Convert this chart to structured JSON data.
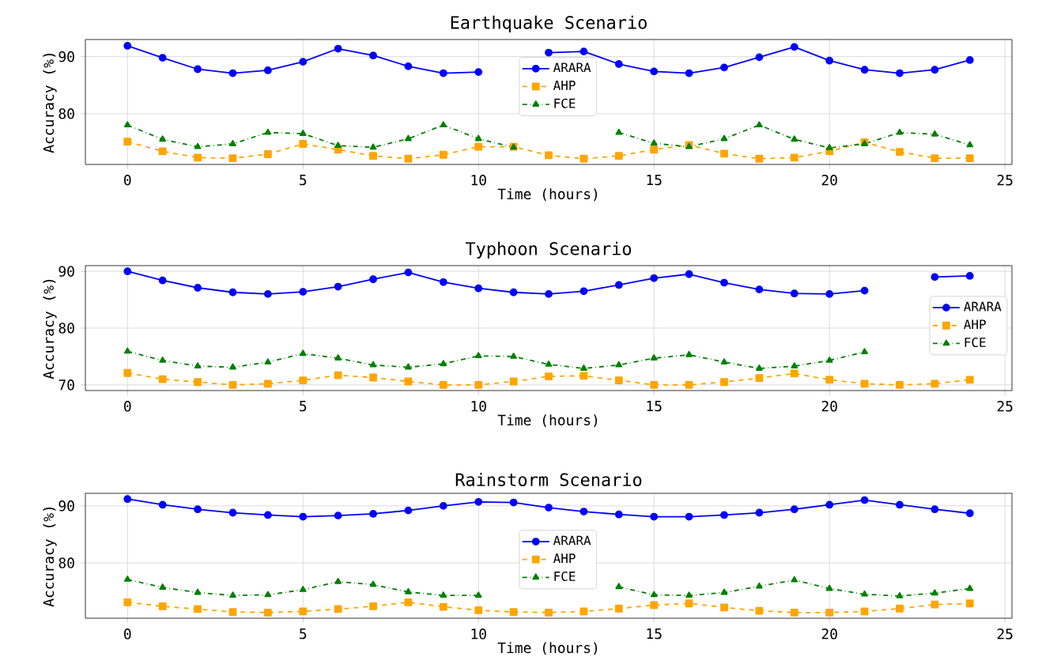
{
  "chart_data": [
    {
      "type": "line",
      "title": "Earthquake Scenario",
      "xlabel": "Time (hours)",
      "ylabel": "Accuracy (%)",
      "x": [
        0,
        1,
        2,
        3,
        4,
        5,
        6,
        7,
        8,
        9,
        10,
        11,
        12,
        13,
        14,
        15,
        16,
        17,
        18,
        19,
        20,
        21,
        22,
        23,
        24
      ],
      "xlim": [
        -1.2,
        25.2
      ],
      "xticks": [
        0,
        5,
        10,
        15,
        20,
        25
      ],
      "ylim": [
        71.1,
        93.0
      ],
      "yticks": [
        80,
        90
      ],
      "grid": true,
      "legend": "top",
      "series": [
        {
          "name": "ARARA",
          "color": "#0000ff",
          "marker": "circle",
          "line_style": "solid",
          "values": [
            91.9,
            89.8,
            87.8,
            87.1,
            87.6,
            89.1,
            91.4,
            90.2,
            88.3,
            87.1,
            87.3,
            null,
            90.7,
            90.9,
            88.7,
            87.4,
            87.1,
            88.1,
            89.9,
            91.7,
            89.3,
            87.7,
            87.1,
            87.7,
            89.4
          ]
        },
        {
          "name": "AHP",
          "color": "#ffa500",
          "marker": "square",
          "line_style": "dashed",
          "values": [
            75.1,
            73.4,
            72.3,
            72.2,
            72.9,
            74.7,
            73.7,
            72.6,
            72.1,
            72.8,
            74.2,
            74.2,
            72.7,
            72.1,
            72.6,
            73.7,
            74.5,
            73.0,
            72.1,
            72.3,
            73.4,
            75.0,
            73.3,
            72.2,
            72.2
          ]
        },
        {
          "name": "FCE",
          "color": "#008000",
          "marker": "triangle",
          "line_style": "dashdot",
          "values": [
            78.0,
            75.5,
            74.2,
            74.7,
            76.7,
            76.5,
            74.4,
            74.1,
            75.6,
            78.0,
            75.6,
            74.1,
            null,
            null,
            76.7,
            74.8,
            74.2,
            75.6,
            78.0,
            75.5,
            74.0,
            74.7,
            76.7,
            76.4,
            74.5
          ]
        }
      ]
    },
    {
      "type": "line",
      "title": "Typhoon Scenario",
      "xlabel": "Time (hours)",
      "ylabel": "Accuracy (%)",
      "x": [
        0,
        1,
        2,
        3,
        4,
        5,
        6,
        7,
        8,
        9,
        10,
        11,
        12,
        13,
        14,
        15,
        16,
        17,
        18,
        19,
        20,
        21,
        22,
        23,
        24
      ],
      "xlim": [
        -1.2,
        25.2
      ],
      "xticks": [
        0,
        5,
        10,
        15,
        20,
        25
      ],
      "ylim": [
        69.0,
        91.0
      ],
      "yticks": [
        70,
        80,
        90
      ],
      "grid": true,
      "legend": "right",
      "series": [
        {
          "name": "ARARA",
          "color": "#0000ff",
          "marker": "circle",
          "line_style": "solid",
          "values": [
            90.0,
            88.4,
            87.1,
            86.3,
            86.0,
            86.4,
            87.3,
            88.6,
            89.8,
            88.1,
            87.0,
            86.3,
            86.0,
            86.5,
            87.6,
            88.8,
            89.5,
            88.0,
            86.8,
            86.1,
            86.0,
            86.6,
            null,
            89.0,
            89.2
          ]
        },
        {
          "name": "AHP",
          "color": "#ffa500",
          "marker": "square",
          "line_style": "dashed",
          "values": [
            72.1,
            71.0,
            70.5,
            70.0,
            70.2,
            70.8,
            71.7,
            71.3,
            70.6,
            70.0,
            70.0,
            70.6,
            71.5,
            71.6,
            70.8,
            70.0,
            70.0,
            70.5,
            71.2,
            72.0,
            70.9,
            70.2,
            70.0,
            70.2,
            70.9
          ]
        },
        {
          "name": "FCE",
          "color": "#008000",
          "marker": "triangle",
          "line_style": "dashdot",
          "values": [
            75.9,
            74.3,
            73.3,
            73.1,
            74.0,
            75.5,
            74.7,
            73.5,
            73.1,
            73.7,
            75.1,
            75.0,
            73.6,
            72.9,
            73.5,
            74.7,
            75.3,
            74.0,
            72.9,
            73.3,
            74.3,
            75.8,
            null,
            null,
            null
          ]
        }
      ]
    },
    {
      "type": "line",
      "title": "Rainstorm Scenario",
      "xlabel": "Time (hours)",
      "ylabel": "Accuracy (%)",
      "x": [
        0,
        1,
        2,
        3,
        4,
        5,
        6,
        7,
        8,
        9,
        10,
        11,
        12,
        13,
        14,
        15,
        16,
        17,
        18,
        19,
        20,
        21,
        22,
        23,
        24
      ],
      "xlim": [
        -1.2,
        25.2
      ],
      "xticks": [
        0,
        5,
        10,
        15,
        20,
        25
      ],
      "ylim": [
        70.3,
        92.2
      ],
      "yticks": [
        80,
        90
      ],
      "grid": true,
      "legend": "center",
      "series": [
        {
          "name": "ARARA",
          "color": "#0000ff",
          "marker": "circle",
          "line_style": "solid",
          "values": [
            91.2,
            90.2,
            89.4,
            88.8,
            88.4,
            88.1,
            88.3,
            88.6,
            89.2,
            90.0,
            90.7,
            90.6,
            89.7,
            89.0,
            88.5,
            88.1,
            88.1,
            88.4,
            88.8,
            89.4,
            90.2,
            91.0,
            90.2,
            89.4,
            88.7
          ]
        },
        {
          "name": "AHP",
          "color": "#ffa500",
          "marker": "square",
          "line_style": "dashed",
          "values": [
            73.1,
            72.4,
            71.9,
            71.4,
            71.3,
            71.5,
            71.9,
            72.4,
            73.1,
            72.3,
            71.7,
            71.4,
            71.3,
            71.5,
            72.0,
            72.6,
            72.9,
            72.2,
            71.6,
            71.3,
            71.3,
            71.5,
            72.0,
            72.7,
            72.9
          ]
        },
        {
          "name": "FCE",
          "color": "#008000",
          "marker": "triangle",
          "line_style": "dashdot",
          "values": [
            77.1,
            75.7,
            74.8,
            74.3,
            74.4,
            75.3,
            76.7,
            76.2,
            74.9,
            74.3,
            74.3,
            null,
            null,
            null,
            75.8,
            74.4,
            74.3,
            74.8,
            75.9,
            77.0,
            75.5,
            74.5,
            74.2,
            74.7,
            75.5
          ]
        }
      ]
    }
  ]
}
